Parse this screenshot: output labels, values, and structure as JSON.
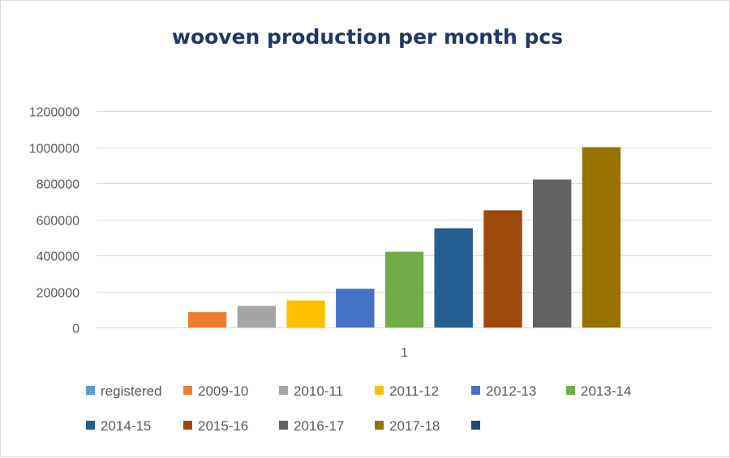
{
  "chart_data": {
    "type": "bar",
    "title": "wooven production per month pcs",
    "xlabel": "",
    "ylabel": "",
    "categories": [
      "1"
    ],
    "ylim": [
      0,
      1200000
    ],
    "yticks": [
      0,
      200000,
      400000,
      600000,
      800000,
      1000000,
      1200000
    ],
    "yticks_labels": [
      "0",
      "200000",
      "400000",
      "600000",
      "800000",
      "1000000",
      "1200000"
    ],
    "grid": true,
    "legend_position": "bottom",
    "series": [
      {
        "name": "registered",
        "color": "#5b9bd5",
        "values": [
          0
        ]
      },
      {
        "name": "2009-10",
        "color": "#ed7d31",
        "values": [
          85000
        ]
      },
      {
        "name": "2010-11",
        "color": "#a5a5a5",
        "values": [
          120000
        ]
      },
      {
        "name": "2011-12",
        "color": "#ffc000",
        "values": [
          150000
        ]
      },
      {
        "name": "2012-13",
        "color": "#4472c4",
        "values": [
          215000
        ]
      },
      {
        "name": "2013-14",
        "color": "#70ad47",
        "values": [
          420000
        ]
      },
      {
        "name": "2014-15",
        "color": "#255e91",
        "values": [
          550000
        ]
      },
      {
        "name": "2015-16",
        "color": "#9e480e",
        "values": [
          650000
        ]
      },
      {
        "name": "2016-17",
        "color": "#636363",
        "values": [
          820000
        ]
      },
      {
        "name": "2017-18",
        "color": "#997300",
        "values": [
          1000000
        ]
      },
      {
        "name": "",
        "color": "#264478",
        "values": [
          0
        ]
      }
    ]
  }
}
